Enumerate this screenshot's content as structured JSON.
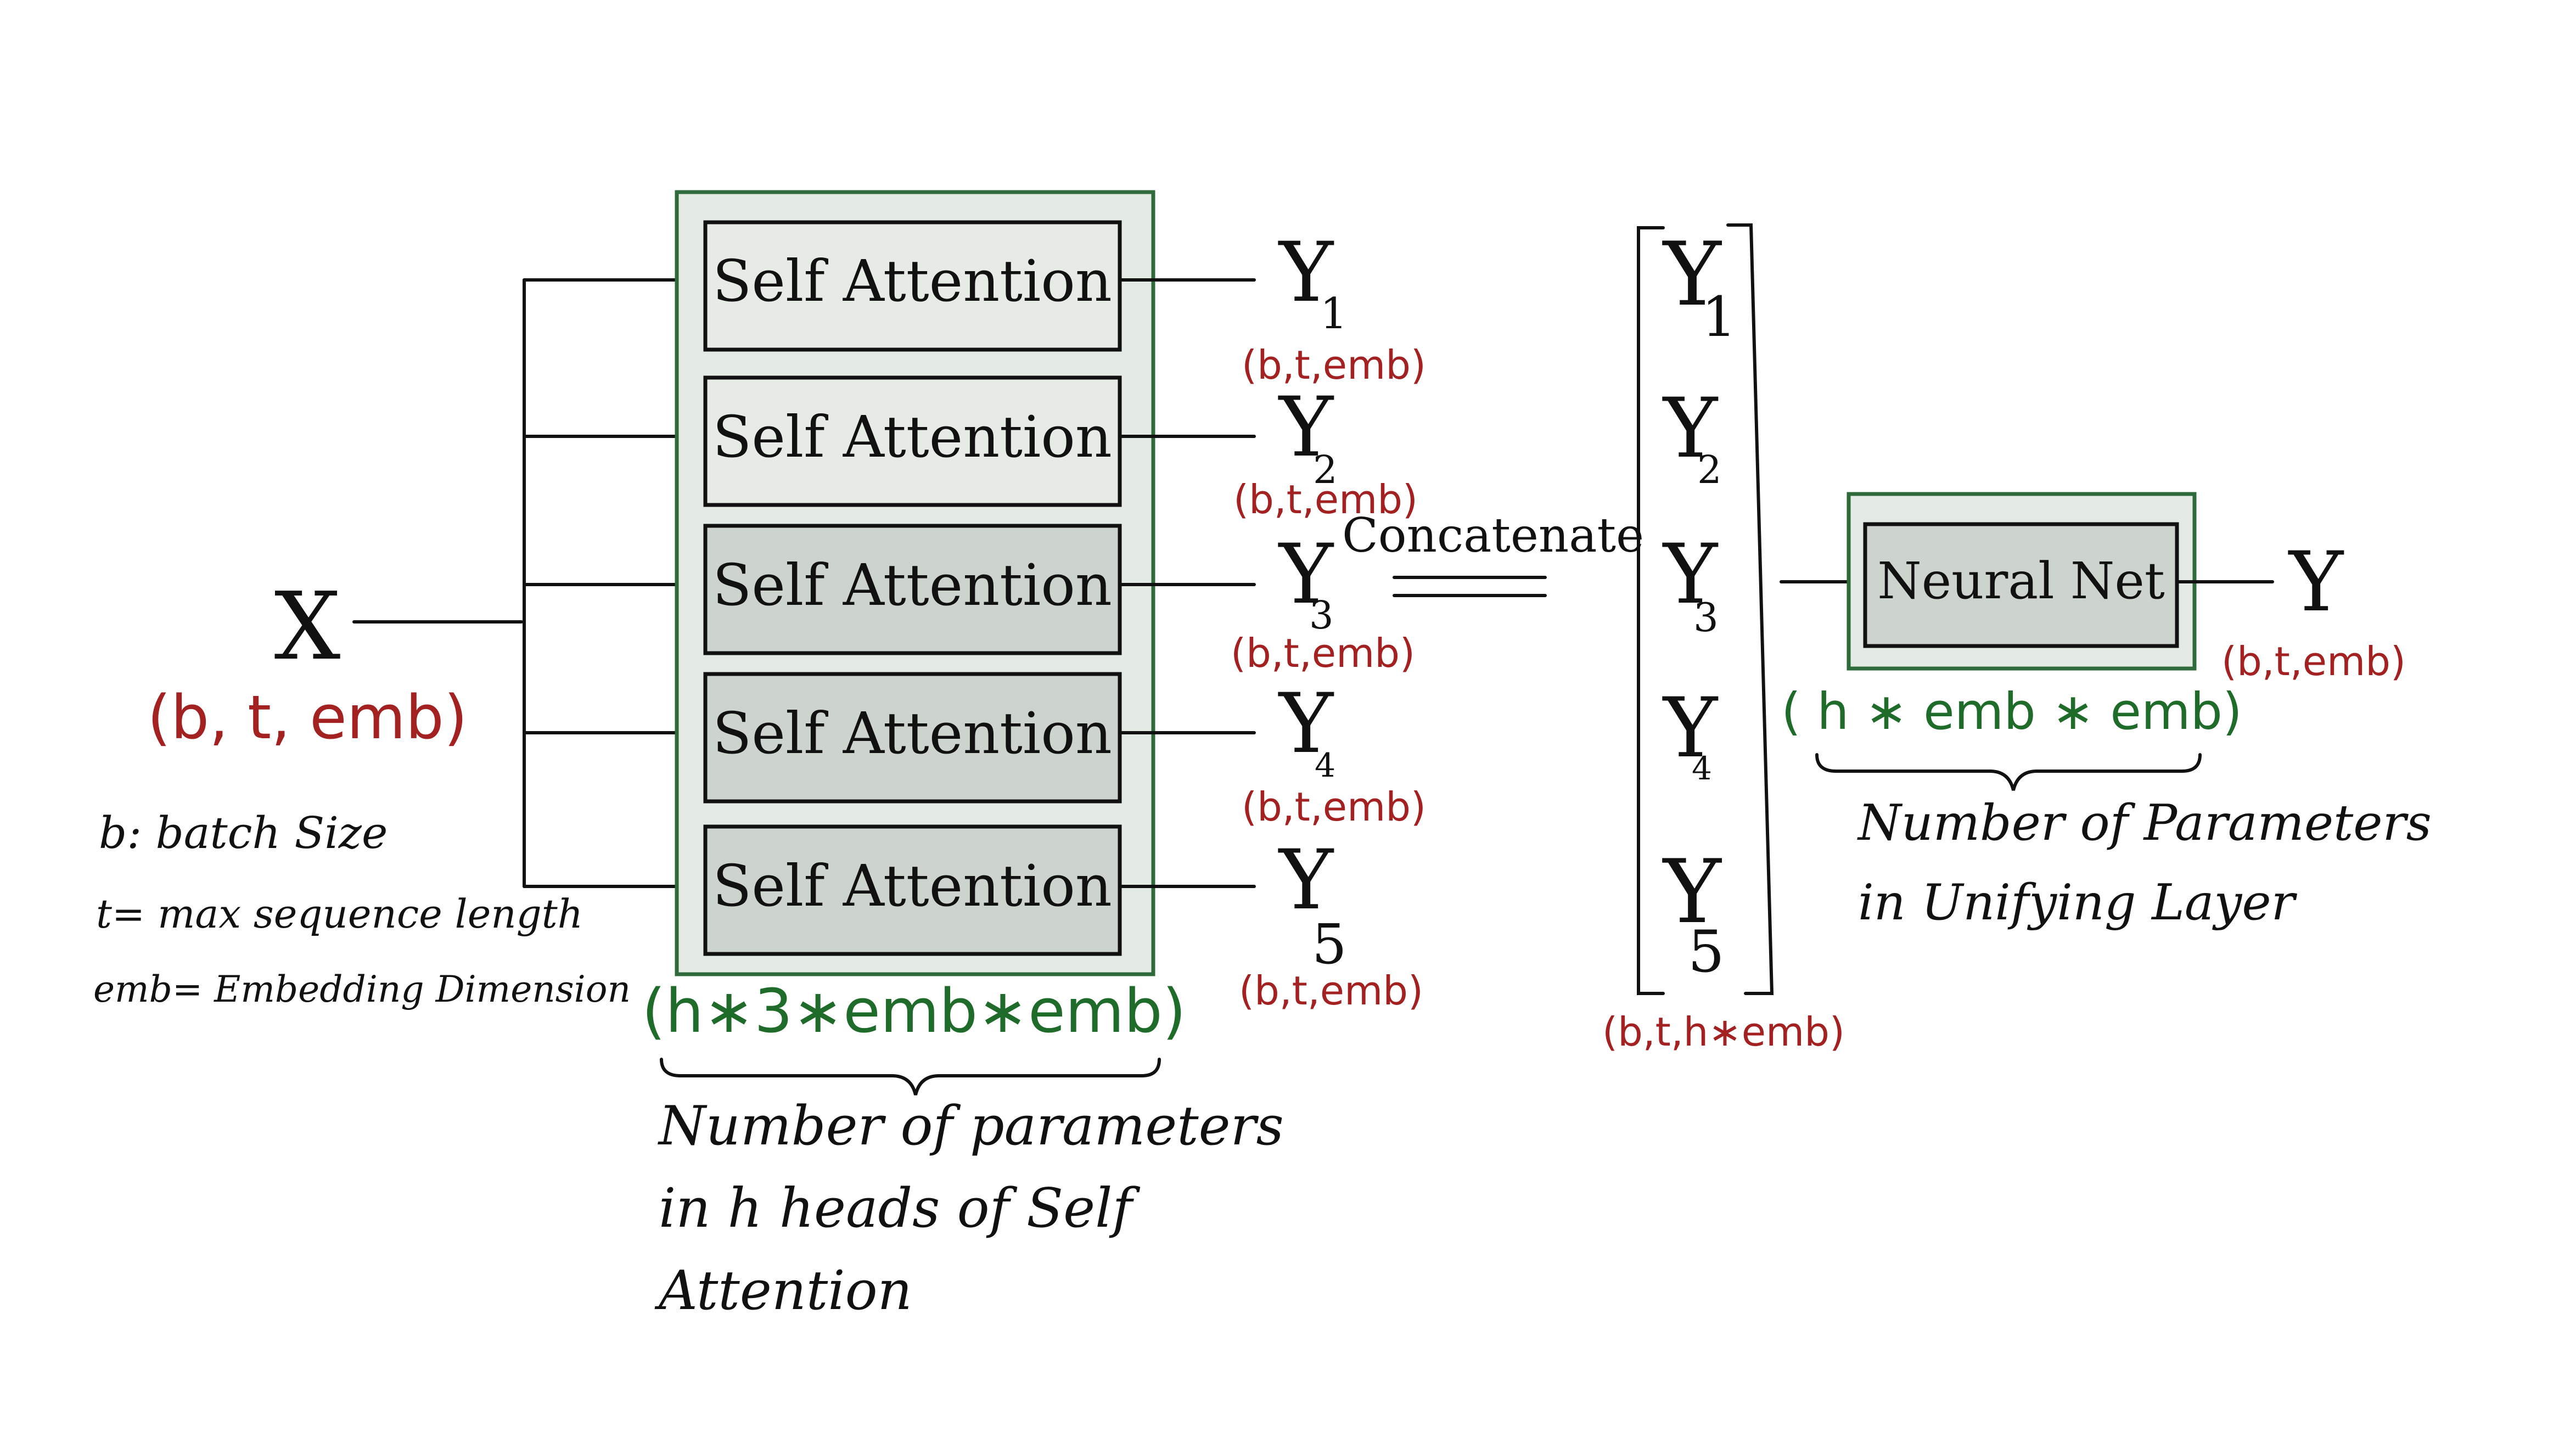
{
  "colors": {
    "ink": "#111111",
    "shape_red": "#a32121",
    "param_green": "#1f6b2a",
    "outer_box_fill": "#e4ebe4",
    "outer_box_stroke": "#2f6b3a",
    "head_fill_light": "#e6ebe6",
    "head_fill_dark": "#cdd3cd"
  },
  "input": {
    "symbol": "X",
    "shape": "(b, t, emb)"
  },
  "legend": {
    "b": "b: batch Size",
    "t": "t= max sequence length",
    "emb": "emb= Embedding Dimension"
  },
  "heads": [
    {
      "label": "Self Attention",
      "output": "Y",
      "sub": "1",
      "shape": "(b,t,emb)"
    },
    {
      "label": "Self Attention",
      "output": "Y",
      "sub": "2",
      "shape": "(b,t,emb)"
    },
    {
      "label": "Self Attention",
      "output": "Y",
      "sub": "3",
      "shape": "(b,t,emb)"
    },
    {
      "label": "Self Attention",
      "output": "Y",
      "sub": "4",
      "shape": "(b,t,emb)"
    },
    {
      "label": "Self Attention",
      "output": "Y",
      "sub": "5",
      "shape": "(b,t,emb)"
    }
  ],
  "heads_params": {
    "formula": "(h∗3∗emb∗emb)",
    "note_lines": [
      "Number of parameters",
      "in h heads of Self",
      "Attention"
    ]
  },
  "concat": {
    "label": "Concatenate",
    "vector": [
      {
        "symbol": "Y",
        "sub": "1"
      },
      {
        "symbol": "Y",
        "sub": "2"
      },
      {
        "symbol": "Y",
        "sub": "3"
      },
      {
        "symbol": "Y",
        "sub": "4"
      },
      {
        "symbol": "Y",
        "sub": "5"
      }
    ],
    "shape": "(b,t,h∗emb)"
  },
  "unify": {
    "label": "Neural Net",
    "formula": "( h ∗ emb ∗ emb)",
    "note_lines": [
      "Number of Parameters",
      "in Unifying Layer"
    ]
  },
  "output": {
    "symbol": "Y",
    "shape": "(b,t,emb)"
  }
}
